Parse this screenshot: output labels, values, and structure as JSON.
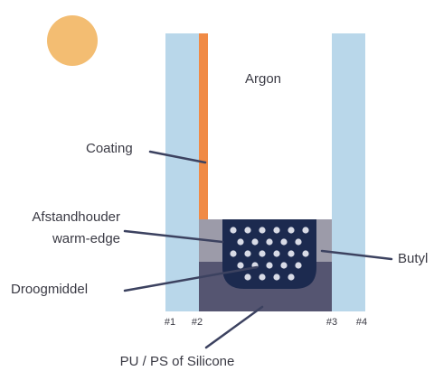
{
  "title": "Argon",
  "labels": {
    "coating": "Coating",
    "spacer_1": "Afstandhouder",
    "spacer_2": "warm-edge",
    "desiccant": "Droogmiddel",
    "butyl": "Butyl",
    "sealant": "PU / PS of Silicone"
  },
  "surfaces": [
    "#1",
    "#2",
    "#3",
    "#4"
  ]
}
